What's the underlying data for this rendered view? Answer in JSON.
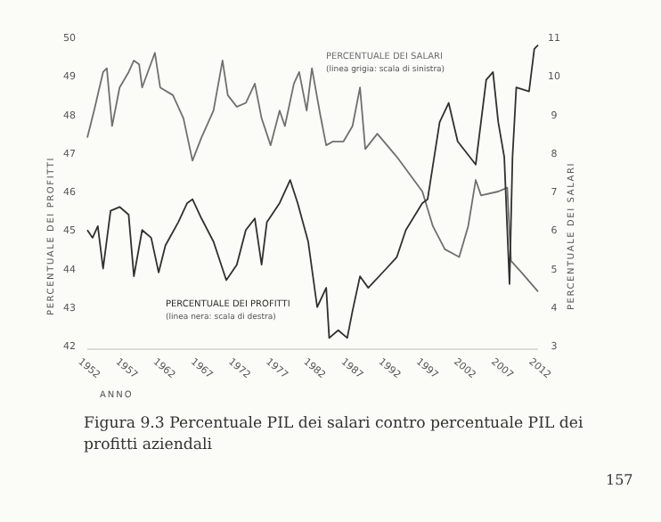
{
  "chart_data": {
    "type": "line",
    "title": "Figura 9.3 Percentuale PIL dei salari contro percentuale PIL dei profitti aziendali",
    "xlabel": "ANNO",
    "ylabel": "PERCENTUALE DEI PROFITTI",
    "y2label": "PERCENTUALE DEI SALARI",
    "xlim": [
      1952,
      2012
    ],
    "xticks": [
      1952,
      1957,
      1962,
      1967,
      1972,
      1977,
      1982,
      1987,
      1992,
      1997,
      2002,
      2007,
      2012
    ],
    "ylim": [
      42,
      50
    ],
    "yticks": [
      42,
      43,
      44,
      45,
      46,
      47,
      48,
      49,
      50
    ],
    "y2lim": [
      3,
      11
    ],
    "y2ticks": [
      3,
      4,
      5,
      6,
      7,
      8,
      9,
      10,
      11
    ],
    "grid": false,
    "annotations": [
      "(linea grigia: scala di sinistra)",
      "(linea nera: scala di destra)",
      "157"
    ],
    "series": [
      {
        "name": "PERCENTUALE DEI SALARI",
        "color": "#707070",
        "x": [
          1952,
          1952.9,
          1954.1,
          1954.6,
          1955.3,
          1956.3,
          1957.5,
          1958.2,
          1958.9,
          1959.3,
          1961,
          1961.7,
          1963.4,
          1964.8,
          1966,
          1967.2,
          1968.8,
          1970,
          1970.7,
          1971.9,
          1973.1,
          1974.3,
          1975.2,
          1976.4,
          1977.6,
          1978.3,
          1979.5,
          1980.2,
          1981.2,
          1981.9,
          1983,
          1983.8,
          1984.7,
          1986.1,
          1987.3,
          1988.3,
          1989,
          1990.6,
          1993.2,
          1996.6,
          1998,
          1999.6,
          2001.5,
          2002.7,
          2003.7,
          2004.4,
          2006.7,
          2007.9,
          2008.4,
          2009.8,
          2012
        ],
        "values": [
          47.4,
          48.1,
          49.1,
          49.2,
          47.7,
          48.7,
          49.1,
          49.4,
          49.3,
          48.7,
          49.6,
          48.7,
          48.5,
          47.9,
          46.8,
          47.4,
          48.1,
          49.4,
          48.5,
          48.2,
          48.3,
          48.8,
          47.9,
          47.2,
          48.1,
          47.7,
          48.8,
          49.1,
          48.1,
          49.2,
          48.0,
          47.2,
          47.3,
          47.3,
          47.7,
          48.7,
          47.1,
          47.5,
          46.9,
          46.0,
          45.1,
          44.5,
          44.3,
          45.1,
          46.3,
          45.9,
          46.0,
          46.1,
          44.2,
          43.9,
          43.4
        ]
      },
      {
        "name": "PERCENTUALE DEI PROFITTI",
        "color": "#303030",
        "axis": "y2",
        "x": [
          1952,
          1952.7,
          1953.4,
          1954.1,
          1955.1,
          1956.3,
          1957.5,
          1958.2,
          1959.3,
          1960.5,
          1961.5,
          1962.4,
          1964.1,
          1965.3,
          1966,
          1967.2,
          1968.8,
          1970.5,
          1971.9,
          1973.1,
          1974.3,
          1975.2,
          1975.9,
          1977.6,
          1979,
          1980,
          1981.4,
          1982.6,
          1983.8,
          1984.2,
          1985.4,
          1986.6,
          1987.3,
          1988.3,
          1989.4,
          1991.8,
          1993.2,
          1994.4,
          1996.6,
          1997.3,
          1998.9,
          2000.1,
          2001.3,
          2003.7,
          2005.1,
          2006,
          2006.7,
          2007.5,
          2008.2,
          2008.6,
          2009.1,
          2010.8,
          2011.5,
          2012
        ],
        "values": [
          6.0,
          5.8,
          6.1,
          5.0,
          6.5,
          6.6,
          6.4,
          4.8,
          6.0,
          5.8,
          4.9,
          5.6,
          6.2,
          6.7,
          6.8,
          6.3,
          5.7,
          4.7,
          5.1,
          6.0,
          6.3,
          5.1,
          6.2,
          6.7,
          7.3,
          6.7,
          5.7,
          4.0,
          4.5,
          3.2,
          3.4,
          3.2,
          3.9,
          4.8,
          4.5,
          5.0,
          5.3,
          6.0,
          6.7,
          6.8,
          8.8,
          9.3,
          8.3,
          7.7,
          9.9,
          10.1,
          8.8,
          7.9,
          4.6,
          7.9,
          9.7,
          9.6,
          10.7,
          10.8
        ]
      }
    ]
  }
}
